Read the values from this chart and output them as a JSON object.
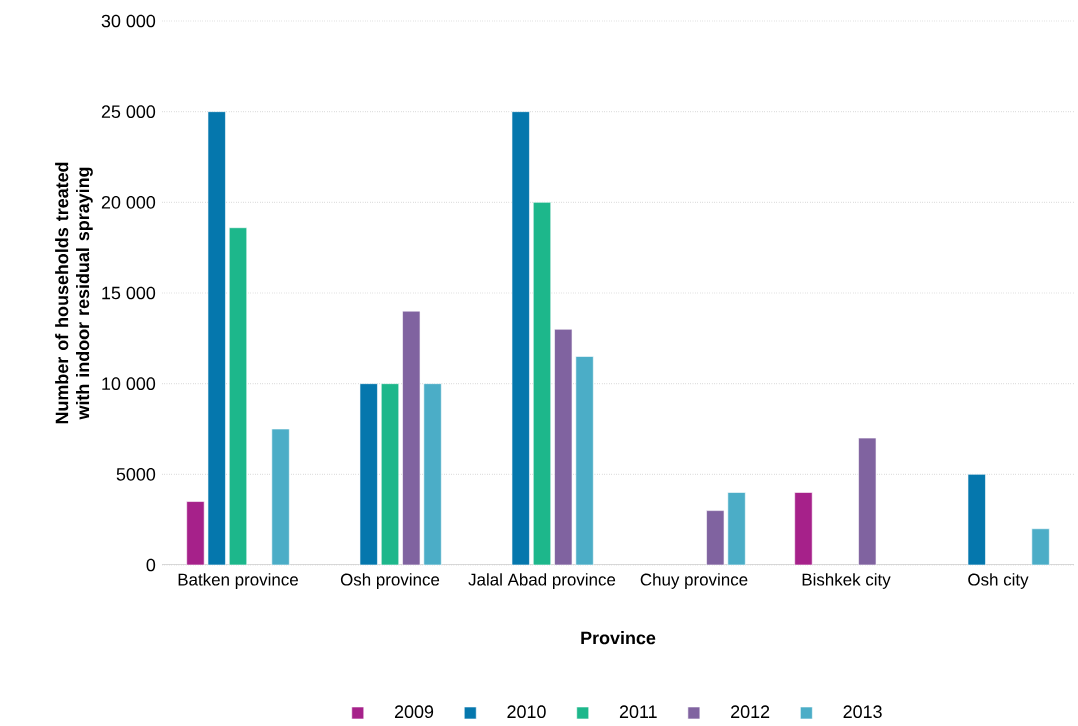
{
  "chart_data": {
    "type": "bar",
    "xlabel": "Province",
    "ylabel": "Number of households treated with indoor residual spraying",
    "categories": [
      "Batken province",
      "Osh province",
      "Jalal Abad province",
      "Chuy province",
      "Bishkek city",
      "Osh city"
    ],
    "series": [
      {
        "name": "2009",
        "color": "#a6218a",
        "values": [
          3500,
          null,
          null,
          null,
          4000,
          null
        ]
      },
      {
        "name": "2010",
        "color": "#0577ad",
        "values": [
          25000,
          10000,
          25000,
          null,
          null,
          5000
        ]
      },
      {
        "name": "2011",
        "color": "#1db78b",
        "values": [
          18600,
          10000,
          20000,
          null,
          null,
          null
        ]
      },
      {
        "name": "2012",
        "color": "#8063a0",
        "values": [
          null,
          14000,
          13000,
          3000,
          7000,
          null
        ]
      },
      {
        "name": "2013",
        "color": "#4badc7",
        "values": [
          7500,
          10000,
          11500,
          4000,
          null,
          2000
        ]
      }
    ],
    "ylim": [
      0,
      30000
    ],
    "yticks": [
      0,
      5000,
      {
        "value": 10000,
        "label": "10 000"
      },
      {
        "value": 15000,
        "label": "15 000"
      },
      {
        "value": 20000,
        "label": "20 000"
      },
      {
        "value": 25000,
        "label": "25 000"
      },
      {
        "value": 30000,
        "label": "30 000"
      }
    ],
    "grid": "y",
    "legend": "bottom"
  }
}
